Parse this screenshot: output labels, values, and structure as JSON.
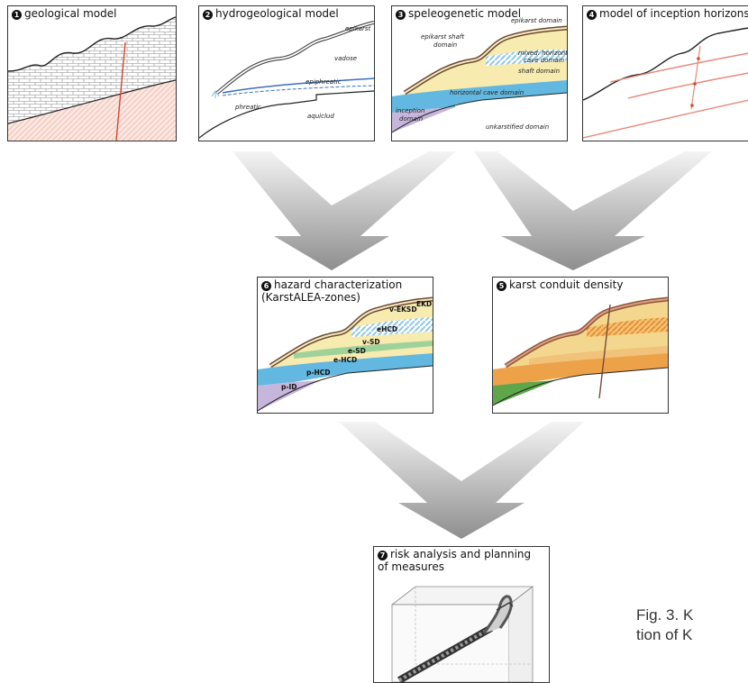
{
  "panels": {
    "geological": {
      "num": "1",
      "title": "geological model"
    },
    "hydrogeological": {
      "num": "2",
      "title": "hydrogeological model",
      "labels": {
        "epikarst": "epikarst",
        "vadose": "vadose",
        "epiphreatic": "epiphreatic",
        "phreatic": "phreatic",
        "aquiclud": "aquiclud"
      }
    },
    "speleogenetic": {
      "num": "3",
      "title": "speleogenetic model",
      "labels": {
        "epikarst_domain": "epikarst domain",
        "epikarst_shaft_1": "epikarst shaft",
        "epikarst_shaft_2": "domain",
        "mixed_1": "mixed: horizontal",
        "mixed_2": "cave domain",
        "shaft_domain": "shaft domain",
        "horizontal_cave": "horizontal cave domain",
        "inception_1": "inception",
        "inception_2": "domain",
        "unkarstified": "unkarstified domain"
      }
    },
    "inception": {
      "num": "4",
      "title": "model of inception horizons"
    },
    "density": {
      "num": "5",
      "title": "karst conduit density"
    },
    "hazard": {
      "num": "6",
      "title": "hazard characterization",
      "subtitle": "(KarstALEA-zones)",
      "zones": {
        "ekd": "EKD",
        "v_eksd": "v-EKSD",
        "ehcd": "eHCD",
        "v_sd": "v-SD",
        "e_sd": "e-SD",
        "e_hcd": "e-HCD",
        "p_hcd": "p-HCD",
        "p_id": "p-ID"
      }
    },
    "risk": {
      "num": "7",
      "title": "risk analysis and planning",
      "subtitle": "of measures"
    }
  },
  "caption": {
    "line1": "Fig. 3. K",
    "line2": "tion of K"
  },
  "colors": {
    "cream": "#f7ebb0",
    "blue": "#62b8e0",
    "purple": "#c7b6dc",
    "hatch": "#9ad0ea",
    "orange": "#eda24a",
    "green": "#5fa64a",
    "red": "#d9452e"
  }
}
